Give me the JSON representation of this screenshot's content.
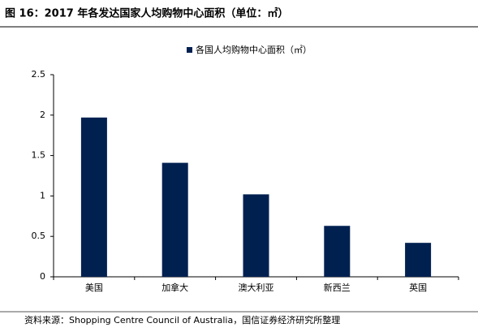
{
  "chart_data": {
    "type": "bar",
    "title": "图 16：2017 年各发达国家人均购物中心面积（单位：㎡）",
    "legend": "各国人均购物中心面积（㎡）",
    "categories": [
      "美国",
      "加拿大",
      "澳大利亚",
      "新西兰",
      "英国"
    ],
    "values": [
      1.97,
      1.41,
      1.02,
      0.63,
      0.42
    ],
    "color": "#002050",
    "ylim": [
      0,
      2.5
    ],
    "yticks": [
      0,
      0.5,
      1,
      1.5,
      2,
      2.5
    ],
    "grid": false,
    "source": "资料来源：Shopping Centre Council of Australia，国信证券经济研究所整理"
  }
}
